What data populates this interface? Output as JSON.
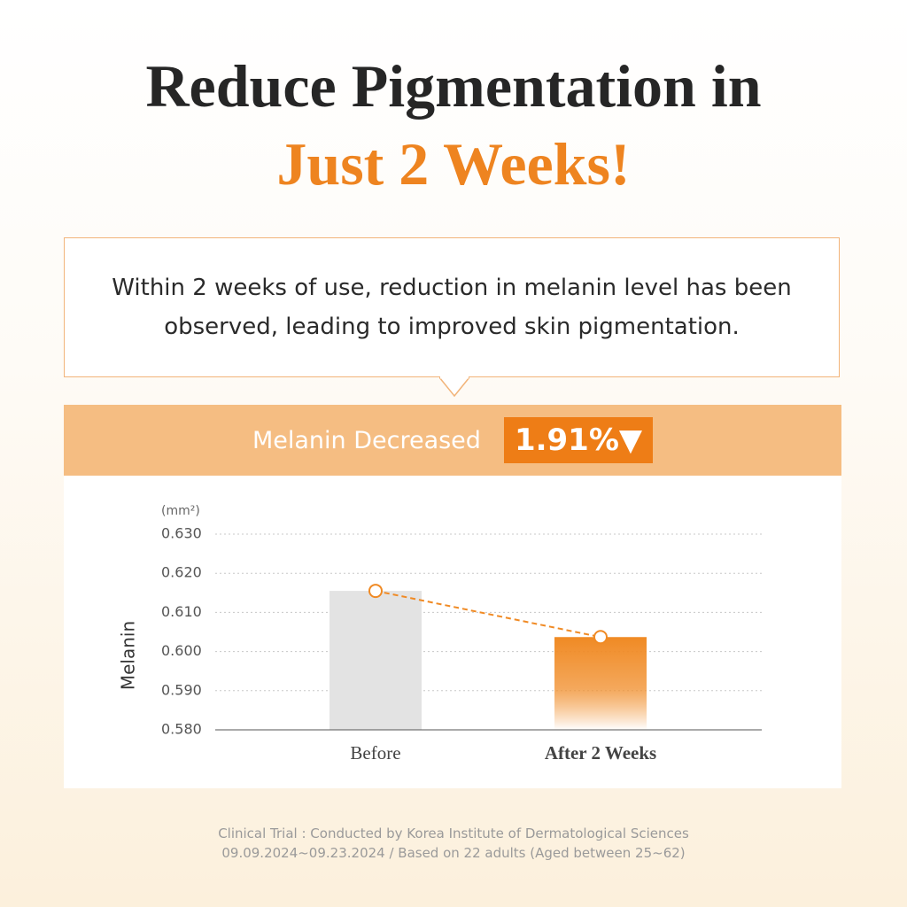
{
  "headline": {
    "line1": "Reduce Pigmentation in",
    "line2": "Just 2 Weeks!"
  },
  "callout": {
    "text": "Within 2 weeks of use, reduction in melanin level has been observed, leading to improved skin pigmentation."
  },
  "banner": {
    "label": "Melanin Decreased",
    "value": "1.91%▼"
  },
  "chart_data": {
    "type": "bar",
    "y_label": "Melanin",
    "y_unit": "(mm²)",
    "categories": [
      "Before",
      "After 2 Weeks"
    ],
    "values": [
      0.6155,
      0.6037
    ],
    "colors": [
      "#e3e3e3",
      "#f08a24"
    ],
    "line_color": "#f08a24",
    "ylim": [
      0.58,
      0.63
    ],
    "yticks": [
      {
        "value": 0.58,
        "label": "0.580"
      },
      {
        "value": 0.59,
        "label": "0.590"
      },
      {
        "value": 0.6,
        "label": "0.600"
      },
      {
        "value": 0.61,
        "label": "0.610"
      },
      {
        "value": 0.62,
        "label": "0.620"
      },
      {
        "value": 0.63,
        "label": "0.630"
      }
    ],
    "grid": true
  },
  "footnote": [
    "Clinical Trial : Conducted by Korea Institute of Dermatological Sciences",
    "09.09.2024~09.23.2024 / Based on  22 adults (Aged between 25~62)"
  ]
}
